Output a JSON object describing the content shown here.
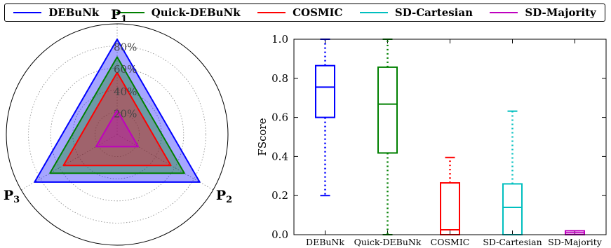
{
  "legend": {
    "items": [
      {
        "label": "DEBuNk",
        "color": "#0000ff"
      },
      {
        "label": "Quick-DEBuNk",
        "color": "#008000"
      },
      {
        "label": "COSMIC",
        "color": "#ff0000"
      },
      {
        "label": "SD-Cartesian",
        "color": "#00bfbf"
      },
      {
        "label": "SD-Majority",
        "color": "#bf00bf"
      }
    ]
  },
  "chart_data": [
    {
      "type": "radar",
      "axes": [
        "P1",
        "P2",
        "P3"
      ],
      "ring_labels": [
        "20%",
        "40%",
        "60%",
        "80%"
      ],
      "rlim": [
        0,
        1
      ],
      "grid": true,
      "series": [
        {
          "name": "DEBuNk",
          "color": "#0000ff",
          "values": [
            0.86,
            0.86,
            0.86
          ]
        },
        {
          "name": "Quick-DEBuNk",
          "color": "#008000",
          "values": [
            0.7,
            0.7,
            0.7
          ]
        },
        {
          "name": "COSMIC",
          "color": "#ff0000",
          "values": [
            0.56,
            0.56,
            0.56
          ]
        },
        {
          "name": "SD-Majority",
          "color": "#bf00bf",
          "values": [
            0.22,
            0.22,
            0.22
          ]
        }
      ]
    },
    {
      "type": "box",
      "categories": [
        "DEBuNk",
        "Quick-DEBuNk",
        "COSMIC",
        "SD-Cartesian",
        "SD-Majority"
      ],
      "ylabel": "FScore",
      "ylim": [
        0,
        1
      ],
      "yticks": [
        "0.0",
        "0.2",
        "0.4",
        "0.6",
        "0.8",
        "1.0"
      ],
      "boxes": [
        {
          "name": "DEBuNk",
          "color": "#0000ff",
          "whislo": 0.2,
          "q1": 0.6,
          "med": 0.755,
          "q3": 0.865,
          "whishi": 1.0
        },
        {
          "name": "Quick-DEBuNk",
          "color": "#008000",
          "whislo": 0.0,
          "q1": 0.418,
          "med": 0.668,
          "q3": 0.857,
          "whishi": 1.0
        },
        {
          "name": "COSMIC",
          "color": "#ff0000",
          "whislo": 0.0,
          "q1": 0.0,
          "med": 0.025,
          "q3": 0.265,
          "whishi": 0.395
        },
        {
          "name": "SD-Cartesian",
          "color": "#00bfbf",
          "whislo": 0.0,
          "q1": 0.0,
          "med": 0.14,
          "q3": 0.26,
          "whishi": 0.632
        },
        {
          "name": "SD-Majority",
          "color": "#bf00bf",
          "whislo": 0.0,
          "q1": 0.0,
          "med": 0.01,
          "q3": 0.02,
          "whishi": 0.02
        }
      ]
    }
  ]
}
